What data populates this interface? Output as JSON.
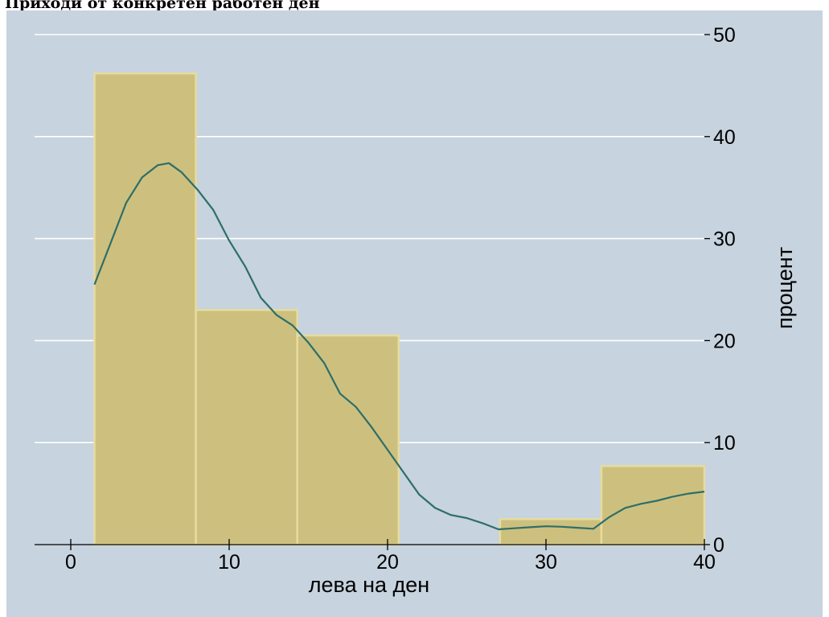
{
  "chart_data": {
    "type": "bar",
    "title": "Приходи от конкретен работен ден",
    "xlabel": "лева на ден",
    "ylabel": "процент",
    "xlim": [
      -1.5,
      40
    ],
    "ylim": [
      0,
      50
    ],
    "x_ticks": [
      0,
      10,
      20,
      30,
      40
    ],
    "y_ticks": [
      0,
      10,
      20,
      30,
      40,
      50
    ],
    "y_axis_position": "right",
    "grid": true,
    "bins": [
      {
        "start": 1.5,
        "end": 7.9,
        "value": 46.2
      },
      {
        "start": 7.9,
        "end": 14.3,
        "value": 23.0
      },
      {
        "start": 14.3,
        "end": 20.7,
        "value": 20.5
      },
      {
        "start": 20.7,
        "end": 27.1,
        "value": 0
      },
      {
        "start": 27.1,
        "end": 33.5,
        "value": 2.5
      },
      {
        "start": 33.5,
        "end": 40.0,
        "value": 7.7
      }
    ],
    "density_curve": {
      "x": [
        1.5,
        2.5,
        3.5,
        4.5,
        5.5,
        6.2,
        7.0,
        8.0,
        9.0,
        10.0,
        11.0,
        12.0,
        13.0,
        14.0,
        15.0,
        16.0,
        17.0,
        18.0,
        19.0,
        20.0,
        21.0,
        22.0,
        23.0,
        24.0,
        25.0,
        26.0,
        27.0,
        28.0,
        29.0,
        30.0,
        31.0,
        32.0,
        33.0,
        34.0,
        35.0,
        36.0,
        37.0,
        38.0,
        39.0,
        40.0
      ],
      "y": [
        25.5,
        29.5,
        33.5,
        36.0,
        37.2,
        37.4,
        36.5,
        34.8,
        32.8,
        29.8,
        27.3,
        24.2,
        22.5,
        21.5,
        19.8,
        17.8,
        14.8,
        13.5,
        11.5,
        9.3,
        7.1,
        4.9,
        3.6,
        2.9,
        2.6,
        2.1,
        1.5,
        1.6,
        1.7,
        1.8,
        1.75,
        1.65,
        1.55,
        2.7,
        3.6,
        4.0,
        4.3,
        4.7,
        5.0,
        5.2
      ]
    },
    "colors": {
      "plot_background": "#c7d3de",
      "bars": "#cdc07e",
      "bar_edge": "#e6dc9e",
      "curve": "#2e6e69",
      "grid": "#ffffff"
    }
  }
}
